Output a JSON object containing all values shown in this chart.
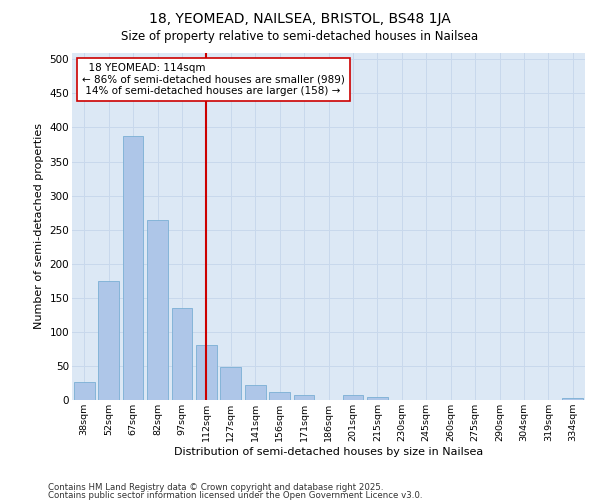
{
  "title1": "18, YEOMEAD, NAILSEA, BRISTOL, BS48 1JA",
  "title2": "Size of property relative to semi-detached houses in Nailsea",
  "xlabel": "Distribution of semi-detached houses by size in Nailsea",
  "ylabel": "Number of semi-detached properties",
  "categories": [
    "38sqm",
    "52sqm",
    "67sqm",
    "82sqm",
    "97sqm",
    "112sqm",
    "127sqm",
    "141sqm",
    "156sqm",
    "171sqm",
    "186sqm",
    "201sqm",
    "215sqm",
    "230sqm",
    "245sqm",
    "260sqm",
    "275sqm",
    "290sqm",
    "304sqm",
    "319sqm",
    "334sqm"
  ],
  "values": [
    27,
    175,
    387,
    264,
    135,
    80,
    48,
    22,
    12,
    8,
    0,
    7,
    4,
    0,
    0,
    0,
    0,
    0,
    0,
    0,
    3
  ],
  "bar_color": "#aec6e8",
  "bar_edge_color": "#7aafd4",
  "vline_x_idx": 5,
  "pct_smaller": 86,
  "n_smaller": 989,
  "pct_larger": 14,
  "n_larger": 158,
  "annotation_box_color": "#ffffff",
  "annotation_box_edge_color": "#cc0000",
  "vline_color": "#cc0000",
  "grid_color": "#c8d8ec",
  "background_color": "#dce8f5",
  "footer_line1": "Contains HM Land Registry data © Crown copyright and database right 2025.",
  "footer_line2": "Contains public sector information licensed under the Open Government Licence v3.0.",
  "ylim": [
    0,
    510
  ],
  "yticks": [
    0,
    50,
    100,
    150,
    200,
    250,
    300,
    350,
    400,
    450,
    500
  ]
}
